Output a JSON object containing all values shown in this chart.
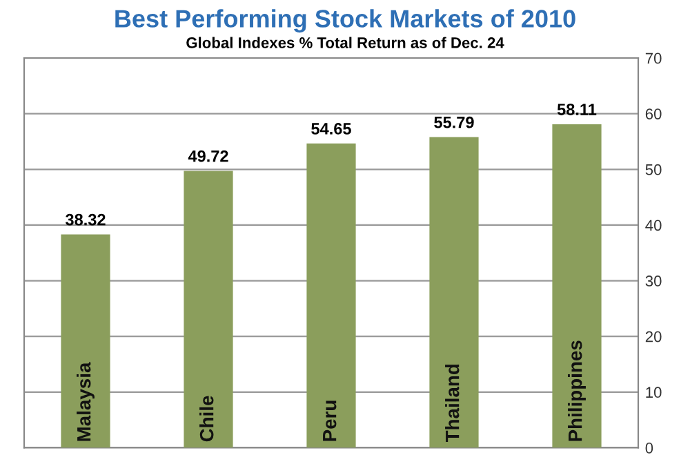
{
  "chart_data": {
    "type": "bar",
    "title": "Best Performing Stock Markets of 2010",
    "subtitle": "Global Indexes % Total Return as of Dec. 24",
    "categories": [
      "Malaysia",
      "Chile",
      "Peru",
      "Thailand",
      "Philippines"
    ],
    "values": [
      38.32,
      49.72,
      54.65,
      55.79,
      58.11
    ],
    "color": "#8b9e5c",
    "ylim": [
      0,
      70
    ],
    "yticks": [
      0,
      10,
      20,
      30,
      40,
      50,
      60,
      70
    ],
    "grid": "y",
    "data_labels": true
  }
}
